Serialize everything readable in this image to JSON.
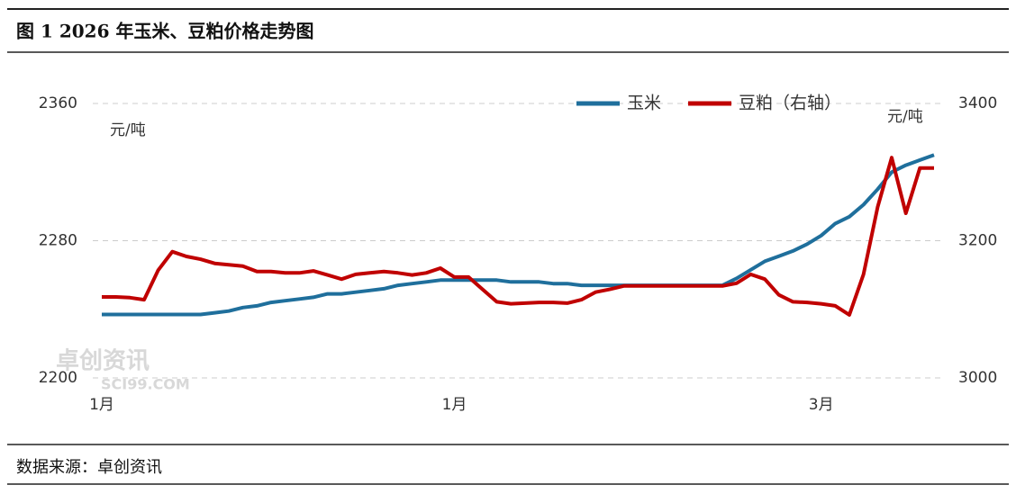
{
  "chart_data": {
    "type": "line",
    "title": "图 1 2026 年玉米、豆粕价格走势图",
    "y_unit": "元/吨",
    "y2_unit": "元/吨",
    "source": "数据来源：卓创资讯",
    "watermark": [
      "卓创资讯",
      "SCI99.COM"
    ],
    "legend": "top-right",
    "grid": true,
    "categories": [
      "1月",
      null,
      null,
      null,
      null,
      null,
      null,
      null,
      null,
      null,
      null,
      null,
      null,
      null,
      null,
      null,
      null,
      null,
      null,
      null,
      null,
      null,
      null,
      null,
      null,
      "1月",
      null,
      null,
      null,
      null,
      null,
      null,
      null,
      null,
      null,
      null,
      null,
      null,
      null,
      null,
      null,
      null,
      null,
      null,
      null,
      null,
      null,
      null,
      null,
      null,
      null,
      "3月",
      null,
      null,
      null,
      null,
      null,
      null,
      null,
      null
    ],
    "series": [
      {
        "name": "玉米",
        "color": "#1f6f9c",
        "values": [
          2237,
          2237,
          2237,
          2237,
          2237,
          2237,
          2237,
          2237,
          2238,
          2239,
          2241,
          2242,
          2244,
          2245,
          2246,
          2247,
          2249,
          2249,
          2250,
          2251,
          2252,
          2254,
          2255,
          2256,
          2257,
          2257,
          2257,
          2257,
          2257,
          2256,
          2256,
          2256,
          2255,
          2255,
          2254,
          2254,
          2254,
          2254,
          2254,
          2254,
          2254,
          2254,
          2254,
          2254,
          2254,
          2258,
          2263,
          2268,
          2271,
          2274,
          2278,
          2283,
          2290,
          2294,
          2301,
          2310,
          2320,
          2324,
          2327,
          2330
        ]
      },
      {
        "name": "豆粕（右轴）",
        "color": "#c00000",
        "axis": "y2",
        "values": [
          3118,
          3118,
          3117,
          3114,
          3157,
          3184,
          3177,
          3173,
          3167,
          3165,
          3163,
          3155,
          3155,
          3153,
          3153,
          3156,
          3150,
          3144,
          3151,
          3153,
          3155,
          3153,
          3150,
          3153,
          3160,
          3147,
          3147,
          3129,
          3111,
          3108,
          3109,
          3110,
          3110,
          3109,
          3114,
          3125,
          3129,
          3134,
          3134,
          3134,
          3134,
          3134,
          3134,
          3134,
          3134,
          3138,
          3151,
          3144,
          3121,
          3111,
          3110,
          3108,
          3105,
          3092,
          3151,
          3249,
          3321,
          3240,
          3306,
          3306
        ]
      }
    ],
    "ylim": [
      2200,
      2360
    ],
    "yticks": [
      2200,
      2280,
      2360
    ],
    "y2lim": [
      3000,
      3400
    ],
    "y2ticks": [
      3000,
      3200,
      3400
    ]
  }
}
